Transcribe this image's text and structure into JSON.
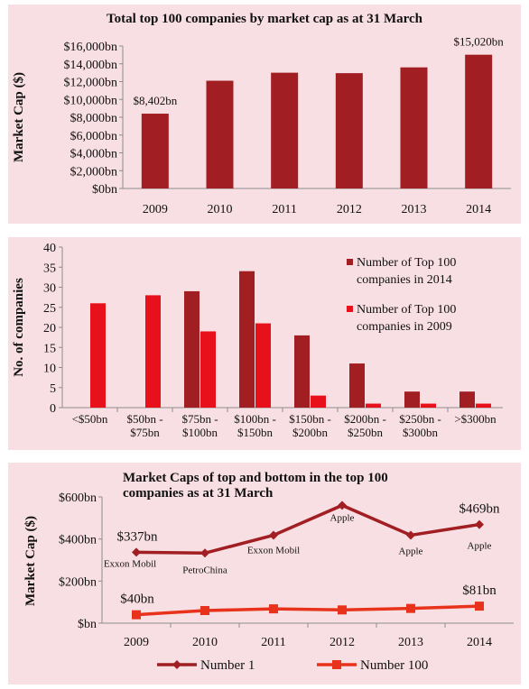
{
  "chart_data": [
    {
      "type": "bar",
      "title": "Total top 100 companies by market cap as at 31 March",
      "ylabel": "Market Cap ($)",
      "ylim": [
        0,
        16000
      ],
      "yticks": [
        "$0bn",
        "$2,000bn",
        "$4,000bn",
        "$6,000bn",
        "$8,000bn",
        "$10,000bn",
        "$12,000bn",
        "$14,000bn",
        "$16,000bn"
      ],
      "categories": [
        "2009",
        "2010",
        "2011",
        "2012",
        "2013",
        "2014"
      ],
      "values": [
        8402,
        12100,
        13000,
        12950,
        13600,
        15020
      ],
      "data_labels": [
        "$8,402bn",
        "",
        "",
        "",
        "",
        "$15,020bn"
      ],
      "color": "#a11e23",
      "grid": false
    },
    {
      "type": "bar",
      "ylabel": "No. of companies",
      "ylim": [
        0,
        40
      ],
      "yticks": [
        "0",
        "5",
        "10",
        "15",
        "20",
        "25",
        "30",
        "35",
        "40"
      ],
      "categories": [
        "<$50bn",
        "$50bn - $75bn",
        "$75bn - $100bn",
        "$100bn - $150bn",
        "$150bn - $200bn",
        "$200bn - $250bn",
        "$250bn - $300bn",
        ">$300bn"
      ],
      "category_lines": [
        [
          "<$50bn"
        ],
        [
          "$50bn -",
          "$75bn"
        ],
        [
          "$75bn -",
          "$100bn"
        ],
        [
          "$100bn -",
          "$150bn"
        ],
        [
          "$150bn -",
          "$200bn"
        ],
        [
          "$200bn -",
          "$250bn"
        ],
        [
          "$250bn -",
          "$300bn"
        ],
        [
          ">$300bn"
        ]
      ],
      "series": [
        {
          "name": "Number of Top 100 companies in 2014",
          "name_lines": [
            "Number of Top 100",
            "companies in 2014"
          ],
          "values": [
            0,
            0,
            29,
            34,
            18,
            11,
            4,
            4
          ],
          "color": "#a11e23"
        },
        {
          "name": "Number of Top 100 companies in 2009",
          "name_lines": [
            "Number of Top 100",
            "companies in 2009"
          ],
          "values": [
            26,
            28,
            19,
            21,
            3,
            1,
            1,
            1
          ],
          "color": "#e8101b"
        }
      ],
      "legend": "right",
      "grid": false
    },
    {
      "type": "line",
      "title": "Market Caps of top and bottom in the top 100 companies as at 31 March",
      "title_lines": [
        "Market Caps of top and bottom in the top 100",
        "companies as at 31 March"
      ],
      "ylabel": "Market Cap ($)",
      "ylim": [
        0,
        600
      ],
      "yticks": [
        "$bn",
        "$200bn",
        "$400bn",
        "$600bn"
      ],
      "categories": [
        "2009",
        "2010",
        "2011",
        "2012",
        "2013",
        "2014"
      ],
      "series": [
        {
          "name": "Number 1",
          "values": [
            337,
            333,
            418,
            560,
            418,
            469
          ],
          "marker": "diamond",
          "color": "#a11e23",
          "annotations": [
            "Exxon Mobil",
            "PetroChina",
            "Exxon Mobil",
            "Apple",
            "Apple",
            "Apple"
          ]
        },
        {
          "name": "Number 100",
          "values": [
            40,
            60,
            68,
            63,
            70,
            81
          ],
          "marker": "square",
          "color": "#e8321b"
        }
      ],
      "value_labels": [
        {
          "text": "$337bn",
          "series": 0,
          "index": 0
        },
        {
          "text": "$469bn",
          "series": 0,
          "index": 5
        },
        {
          "text": "$40bn",
          "series": 1,
          "index": 0
        },
        {
          "text": "$81bn",
          "series": 1,
          "index": 5
        }
      ],
      "legend": "bottom",
      "grid": false
    }
  ]
}
